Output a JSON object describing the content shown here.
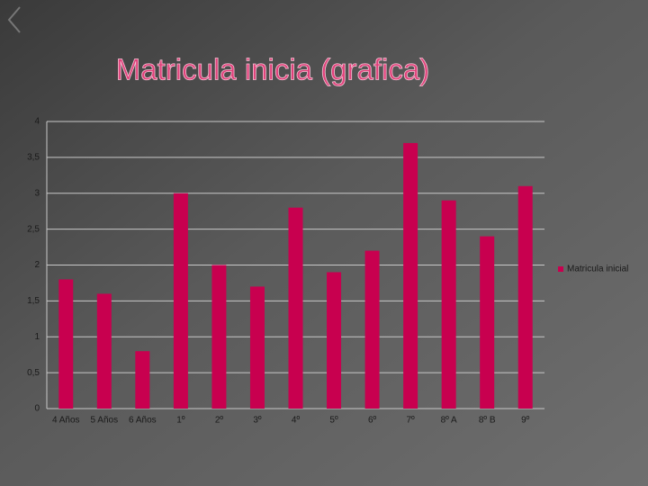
{
  "chart_data": {
    "type": "bar",
    "title": "Matricula inicia (grafica)",
    "categories": [
      "4 Años",
      "5 Años",
      "6 Años",
      "1º",
      "2º",
      "3º",
      "4º",
      "5º",
      "6º",
      "7º",
      "8º A",
      "8º B",
      "9º"
    ],
    "series": [
      {
        "name": "Matricula inicial",
        "color": "#c8004f",
        "values": [
          1.8,
          1.6,
          0.8,
          3.0,
          2.0,
          1.7,
          2.8,
          1.9,
          2.2,
          3.7,
          2.9,
          2.4,
          3.1
        ]
      }
    ],
    "ylim": [
      0,
      4
    ],
    "yticks": [
      0,
      {
        "value": 0.5,
        "label": "0,5"
      },
      1,
      {
        "value": 1.5,
        "label": "1,5"
      },
      2,
      {
        "value": 2.5,
        "label": "2,5"
      },
      3,
      {
        "value": 3.5,
        "label": "3,5"
      },
      4
    ],
    "grid": true,
    "legend": "right"
  }
}
